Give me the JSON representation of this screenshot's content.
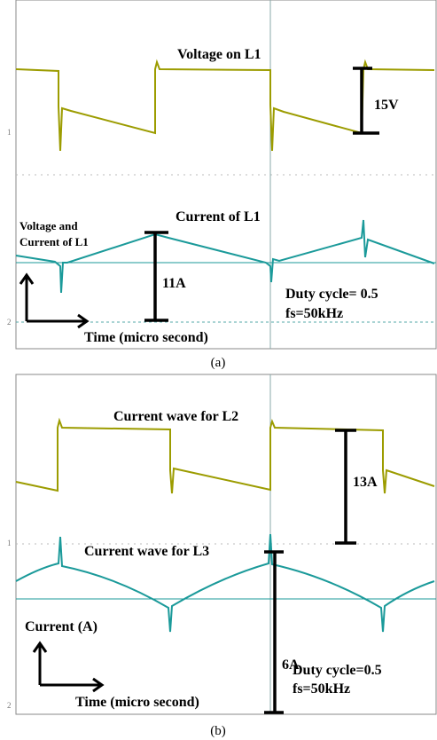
{
  "panels": [
    {
      "caption": "(a)",
      "title_top": "Voltage on L1",
      "measure_top": "15V",
      "title_bottom": "Current of L1",
      "axis_label": [
        "Voltage and",
        "Current of L1"
      ],
      "measure_bottom": "11A",
      "duty": "Duty cycle= 0.5",
      "freq": "fs=50kHz",
      "time_label": "Time (micro second)",
      "channel_markers": [
        "1",
        "2"
      ]
    },
    {
      "caption": "(b)",
      "title_top": "Current wave for L2",
      "measure_top": "13A",
      "title_bottom": "Current wave for L3",
      "axis_label": [
        "Current (A)"
      ],
      "measure_bottom": "6A",
      "duty": "Duty cycle=0.5",
      "freq": "fs=50kHz",
      "time_label": "Time (micro second)",
      "channel_markers": [
        "1",
        "2"
      ]
    }
  ]
}
